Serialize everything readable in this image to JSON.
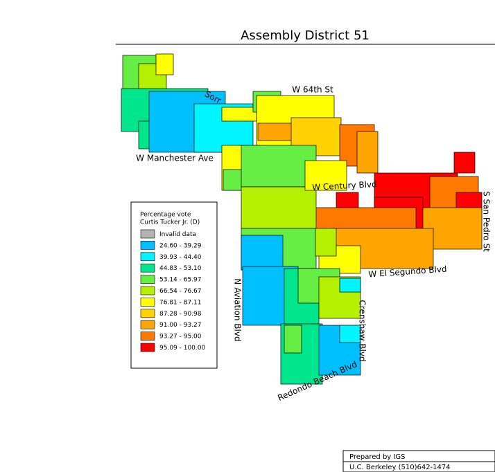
{
  "title": "Assembly District 51",
  "streets": [
    "Sorr",
    "W 64th St",
    "W Manchester Ave",
    "W Century Blvd",
    "S San Pedro St",
    "W El Segundo Blvd",
    "N Aviation Blvd",
    "Crenshaw Blvd",
    "Redondo Beach Blvd"
  ],
  "legend": {
    "title_lines": [
      "Percentage vote",
      "Curtis Tucker Jr. (D)"
    ],
    "items": [
      {
        "label": "Invalid data",
        "color": "#b4b4b4"
      },
      {
        "label": "24.60 -  39.29",
        "color": "#00bfff"
      },
      {
        "label": "39.93 -  44.40",
        "color": "#00f5ff"
      },
      {
        "label": "44.83 -  53.10",
        "color": "#00e68c"
      },
      {
        "label": "53.14 -  65.97",
        "color": "#66ee44"
      },
      {
        "label": "66.54 -  76.67",
        "color": "#b4f000"
      },
      {
        "label": "76.81 -  87.11",
        "color": "#ffff00"
      },
      {
        "label": "87.28 -  90.98",
        "color": "#ffd200"
      },
      {
        "label": "91.00 -  93.27",
        "color": "#ffa500"
      },
      {
        "label": "93.27 -  95.00",
        "color": "#ff7800"
      },
      {
        "label": "95.09 - 100.00",
        "color": "#ff0000"
      }
    ]
  },
  "footer": [
    "Prepared by IGS",
    "U.C. Berkeley (510)642-1474"
  ]
}
